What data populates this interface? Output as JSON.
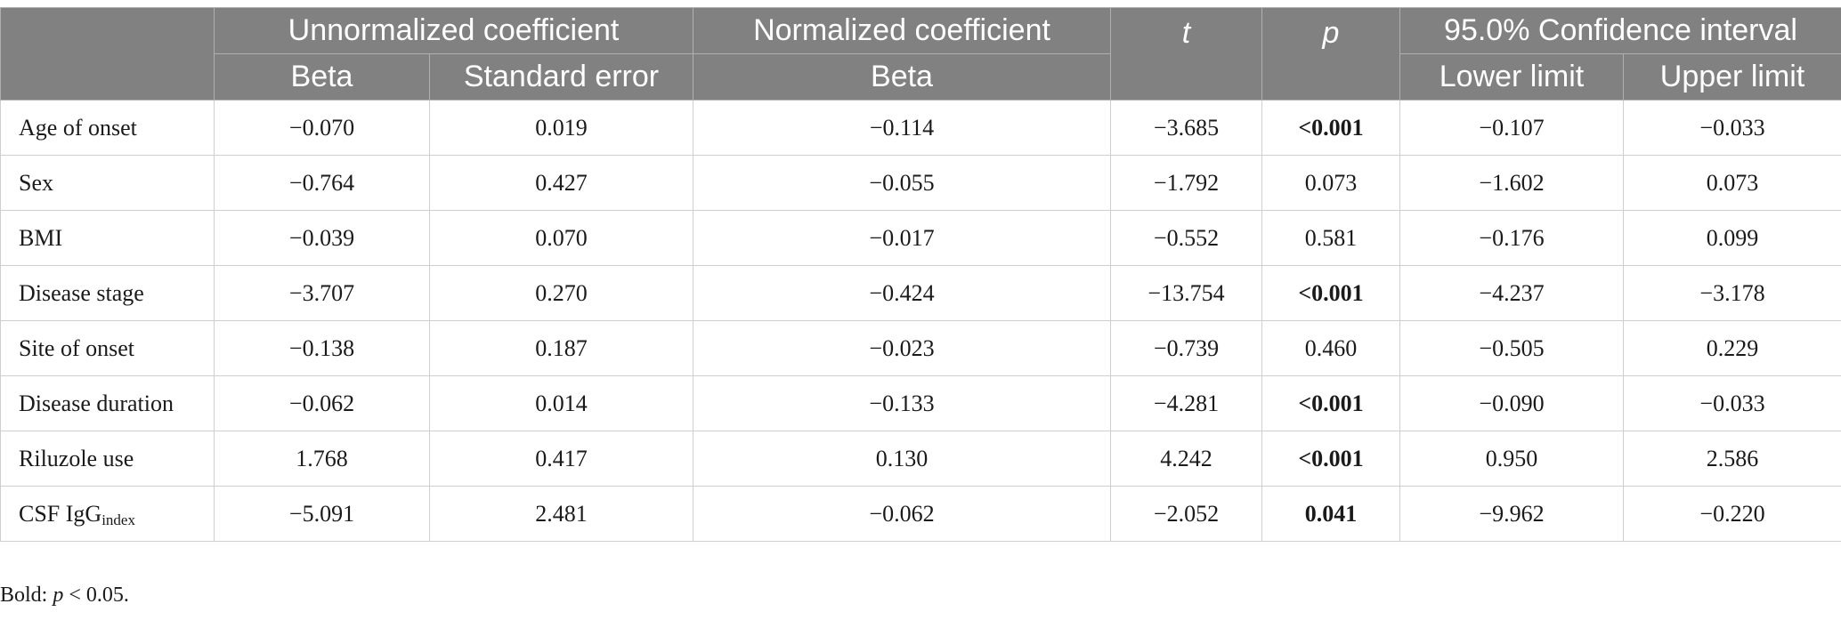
{
  "header": {
    "group_unnormalized": "Unnormalized coefficient",
    "group_normalized": "Normalized coefficient",
    "t": "t",
    "p": "p",
    "group_ci": "95.0% Confidence interval",
    "beta_unnorm": "Beta",
    "std_error": "Standard error",
    "beta_norm": "Beta",
    "lower_limit": "Lower limit",
    "upper_limit": "Upper limit"
  },
  "rows": [
    {
      "label": "Age of onset",
      "beta": "−0.070",
      "se": "0.019",
      "nbeta": "−0.114",
      "t": "−3.685",
      "p": "<0.001",
      "lower": "−0.107",
      "upper": "−0.033"
    },
    {
      "label": "Sex",
      "beta": "−0.764",
      "se": "0.427",
      "nbeta": "−0.055",
      "t": "−1.792",
      "p": "0.073",
      "lower": "−1.602",
      "upper": "0.073"
    },
    {
      "label": "BMI",
      "beta": "−0.039",
      "se": "0.070",
      "nbeta": "−0.017",
      "t": "−0.552",
      "p": "0.581",
      "lower": "−0.176",
      "upper": "0.099"
    },
    {
      "label": "Disease stage",
      "beta": "−3.707",
      "se": "0.270",
      "nbeta": "−0.424",
      "t": "−13.754",
      "p": "<0.001",
      "lower": "−4.237",
      "upper": "−3.178"
    },
    {
      "label": "Site of onset",
      "beta": "−0.138",
      "se": "0.187",
      "nbeta": "−0.023",
      "t": "−0.739",
      "p": "0.460",
      "lower": "−0.505",
      "upper": "0.229"
    },
    {
      "label": "Disease duration",
      "beta": "−0.062",
      "se": "0.014",
      "nbeta": "−0.133",
      "t": "−4.281",
      "p": "<0.001",
      "lower": "−0.090",
      "upper": "−0.033"
    },
    {
      "label": "Riluzole use",
      "beta": "1.768",
      "se": "0.417",
      "nbeta": "0.130",
      "t": "4.242",
      "p": "<0.001",
      "lower": "0.950",
      "upper": "2.586"
    },
    {
      "label": "CSF IgG",
      "label_sub": "index",
      "beta": "−5.091",
      "se": "2.481",
      "nbeta": "−0.062",
      "t": "−2.052",
      "p": "0.041",
      "lower": "−9.962",
      "upper": "−0.220"
    }
  ],
  "footnote": {
    "prefix": "Bold: ",
    "symbol": "p",
    "suffix": " < 0.05."
  },
  "colors": {
    "header_bg": "#818181",
    "header_text": "#ffffff",
    "grid": "#cfcfcf"
  }
}
